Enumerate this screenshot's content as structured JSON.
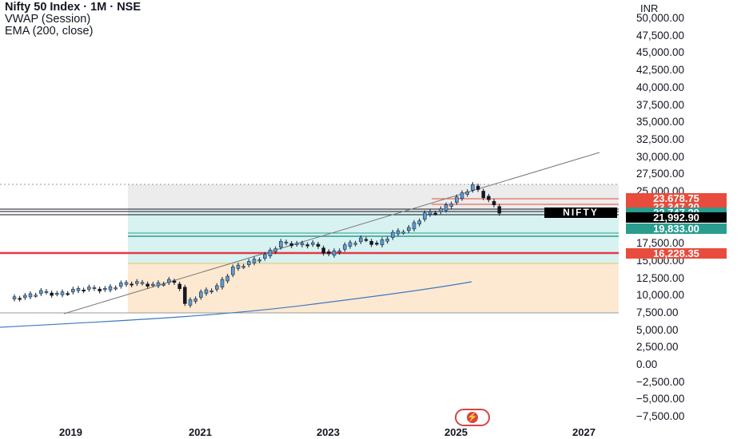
{
  "legend": {
    "title": "Nifty 50 Index · 1M · NSE",
    "vwap": "VWAP (Session)",
    "ema": "EMA (200, close)"
  },
  "currency": "INR",
  "symbol_tag": "NIFTY",
  "price_tags": [
    {
      "label": "23,678.75",
      "color": "#e74c3c"
    },
    {
      "label": "23,347.20",
      "color": "#e74c3c"
    },
    {
      "label": "22,747.20",
      "color": "#2a9d8f"
    },
    {
      "label": "21,992.90",
      "color": "#000000"
    },
    {
      "label": "19,833.00",
      "color": "#2a9d8f"
    },
    {
      "label": "16,228.35",
      "color": "#e74c3c"
    }
  ],
  "colors": {
    "up_candle": "#5b9bd5",
    "down_candle": "#131722",
    "ema_line": "#3a78c3",
    "support_line": "#e63946",
    "teal": "#2a9d8f",
    "fib_gray": "#ececec",
    "fib_teal": "#d7f2f1",
    "fib_orange": "#fde9d1"
  },
  "chart_data": {
    "type": "candlestick",
    "title": "Nifty 50 Index · 1M · NSE",
    "xlabel": "",
    "ylabel": "INR",
    "x_ticks": [
      "2019",
      "2021",
      "2023",
      "2025",
      "2027"
    ],
    "y_ticks": [
      "50,000.00",
      "47,500.00",
      "45,000.00",
      "42,500.00",
      "40,000.00",
      "37,500.00",
      "35,000.00",
      "32,500.00",
      "30,000.00",
      "27,500.00",
      "25,000.00",
      "17,500.00",
      "15,000.00",
      "12,500.00",
      "10,000.00",
      "7,500.00",
      "5,000.00",
      "2,500.00",
      "0.00",
      "−2,500.00",
      "−5,000.00",
      "−7,500.00"
    ],
    "ylim": [
      -8000,
      52000
    ],
    "series_close": [
      [
        "2017-06",
        9500
      ],
      [
        "2017-09",
        9800
      ],
      [
        "2017-12",
        10500
      ],
      [
        "2018-03",
        10100
      ],
      [
        "2018-06",
        10700
      ],
      [
        "2018-09",
        11000
      ],
      [
        "2018-12",
        10800
      ],
      [
        "2019-03",
        11600
      ],
      [
        "2019-06",
        11800
      ],
      [
        "2019-09",
        11400
      ],
      [
        "2019-12",
        12100
      ],
      [
        "2020-02",
        11200
      ],
      [
        "2020-03",
        8600
      ],
      [
        "2020-06",
        10300
      ],
      [
        "2020-09",
        11200
      ],
      [
        "2020-12",
        13900
      ],
      [
        "2021-03",
        14700
      ],
      [
        "2021-06",
        15700
      ],
      [
        "2021-09",
        17600
      ],
      [
        "2021-12",
        17300
      ],
      [
        "2022-03",
        17400
      ],
      [
        "2022-06",
        15800
      ],
      [
        "2022-09",
        17100
      ],
      [
        "2022-12",
        18100
      ],
      [
        "2023-03",
        17300
      ],
      [
        "2023-06",
        18900
      ],
      [
        "2023-09",
        19600
      ],
      [
        "2023-12",
        21700
      ],
      [
        "2024-03",
        22300
      ],
      [
        "2024-06",
        24000
      ],
      [
        "2024-09",
        25800
      ],
      [
        "2024-12",
        23600
      ],
      [
        "2025-02",
        22100
      ]
    ],
    "levels": [
      23678.75,
      23347.2,
      22747.2,
      21992.9,
      19833.0,
      16228.35
    ],
    "grid": false
  }
}
